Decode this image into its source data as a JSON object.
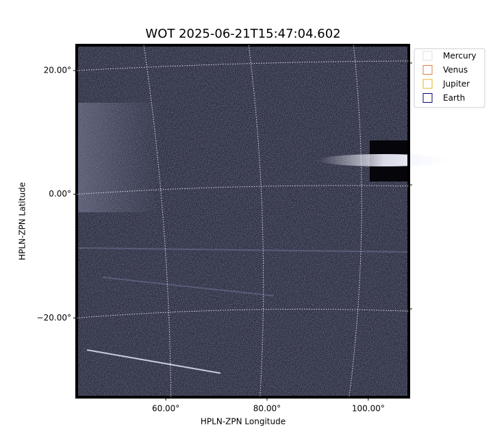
{
  "chart_data": {
    "type": "image",
    "title": "WOT 2025-06-21T15:47:04.602",
    "xlabel": "HPLN-ZPN Longitude",
    "ylabel": "HPLN-ZPN Latitude",
    "xlim": [
      42.4,
      108.0
    ],
    "ylim": [
      -32.8,
      24.1
    ],
    "xticks": [
      {
        "value": 60,
        "label": "60.00°"
      },
      {
        "value": 80,
        "label": "80.00°"
      },
      {
        "value": 100,
        "label": "100.00°"
      }
    ],
    "yticks": [
      {
        "value": 20,
        "label": "20.00°"
      },
      {
        "value": 0,
        "label": "0.00°"
      },
      {
        "value": -20,
        "label": "−20.00°"
      }
    ],
    "grid": true,
    "legend_position": "upper right outside",
    "series": [
      {
        "name": "Mercury",
        "color": "#dddddd"
      },
      {
        "name": "Venus",
        "color": "#e07b39"
      },
      {
        "name": "Jupiter",
        "color": "#e8b020"
      },
      {
        "name": "Earth",
        "color": "#000080"
      }
    ]
  }
}
